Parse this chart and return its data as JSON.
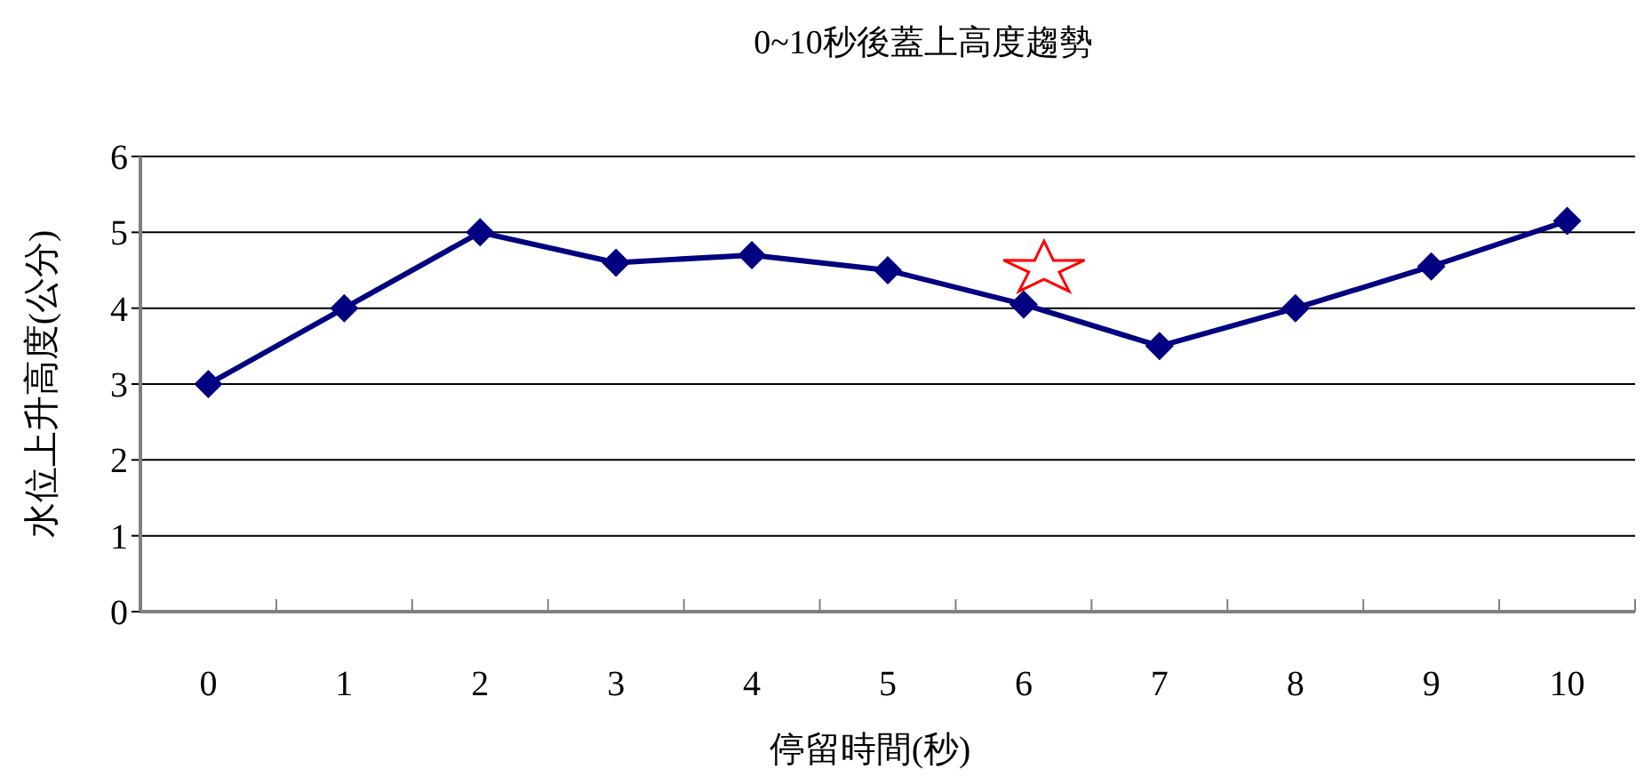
{
  "chart_data": {
    "type": "line",
    "title": "0~10秒後蓋上高度趨勢",
    "xlabel": "停留時間(秒)",
    "ylabel": "水位上升高度(公分)",
    "categories": [
      "0",
      "1",
      "2",
      "3",
      "4",
      "5",
      "6",
      "7",
      "8",
      "9",
      "10"
    ],
    "series": [
      {
        "color": "#000080",
        "values": [
          3,
          4,
          5,
          4.6,
          4.7,
          4.5,
          4.05,
          3.5,
          4,
          4.55,
          5.15
        ]
      }
    ],
    "ylim": [
      0,
      6
    ],
    "yticks": [
      0,
      1,
      2,
      3,
      4,
      5,
      6
    ],
    "grid": "y",
    "marker": "diamond",
    "line_style": "solid"
  }
}
